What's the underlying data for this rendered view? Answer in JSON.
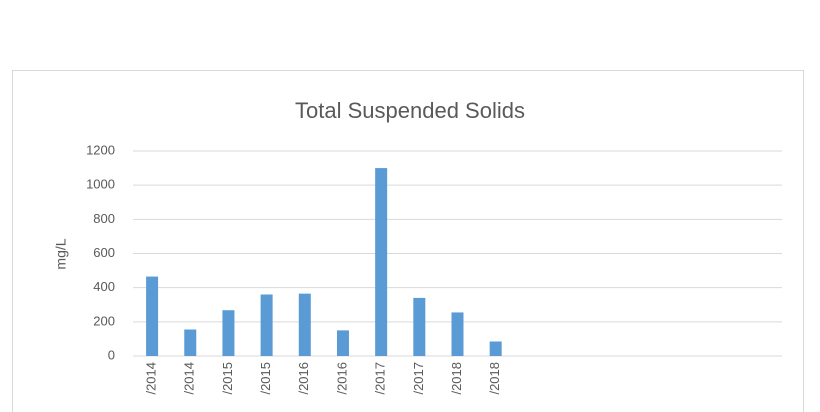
{
  "chart_data": {
    "type": "bar",
    "title": "Total Suspended Solids",
    "y_label": "mg/L",
    "categories": [
      "/2014",
      "/2014",
      "/2015",
      "/2015",
      "/2016",
      "/2016",
      "/2017",
      "/2017",
      "/2018",
      "/2018",
      null,
      null,
      null,
      null,
      null,
      null,
      null
    ],
    "values": [
      465,
      155,
      268,
      360,
      365,
      150,
      1100,
      340,
      255,
      85,
      null,
      null,
      null,
      null,
      null,
      null,
      null
    ],
    "color": "#5b9bd5",
    "ylim": [
      0,
      1200
    ],
    "yticks": [
      0,
      200,
      400,
      600,
      800,
      1000,
      1200
    ],
    "grid": true
  }
}
